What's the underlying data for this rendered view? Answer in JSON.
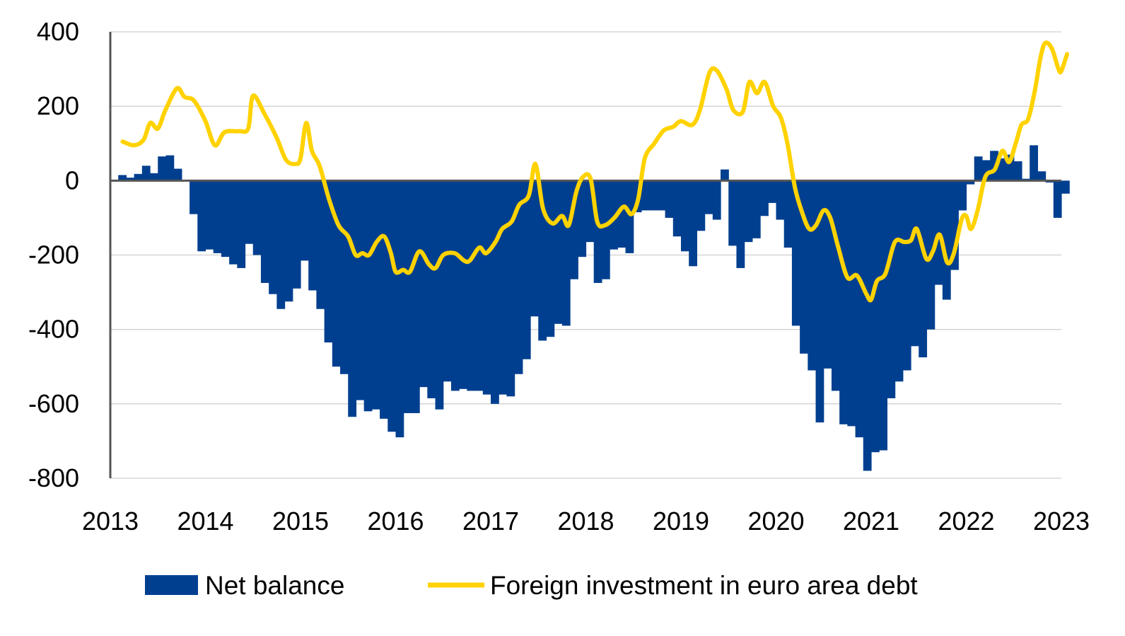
{
  "chart_data": {
    "type": "bar+line",
    "title": "",
    "xlabel": "",
    "ylabel": "",
    "ylim": [
      -800,
      400
    ],
    "yticks": [
      "400",
      "200",
      "0",
      "-200",
      "-400",
      "-600",
      "-800"
    ],
    "xlim": [
      2013,
      2023
    ],
    "xticks": [
      "2013",
      "2014",
      "2015",
      "2016",
      "2017",
      "2018",
      "2019",
      "2020",
      "2021",
      "2022",
      "2023"
    ],
    "grid": true,
    "legend_position": "bottom",
    "series": [
      {
        "name": "Net balance",
        "kind": "bar",
        "color": "#003f8f",
        "start": 2013.0,
        "step_months": 1,
        "values": [
          15,
          8,
          18,
          40,
          20,
          65,
          68,
          32,
          0,
          -90,
          -190,
          -185,
          -195,
          -205,
          -225,
          -235,
          -170,
          -200,
          -275,
          -305,
          -345,
          -325,
          -290,
          -215,
          -295,
          -345,
          -435,
          -500,
          -520,
          -635,
          -590,
          -620,
          -615,
          -640,
          -675,
          -690,
          -625,
          -625,
          -555,
          -585,
          -615,
          -540,
          -565,
          -560,
          -565,
          -565,
          -575,
          -600,
          -575,
          -580,
          -520,
          -480,
          -365,
          -430,
          -420,
          -385,
          -390,
          -265,
          -205,
          -165,
          -275,
          -265,
          -185,
          -180,
          -195,
          -85,
          -80,
          -80,
          -80,
          -100,
          -150,
          -190,
          -230,
          -135,
          -90,
          -105,
          30,
          -175,
          -235,
          -165,
          -155,
          -95,
          -60,
          -105,
          -180,
          -390,
          -465,
          -510,
          -650,
          -505,
          -565,
          -655,
          -660,
          -690,
          -780,
          -730,
          -725,
          -585,
          -540,
          -510,
          -445,
          -475,
          -400,
          -280,
          -320,
          -240,
          -80,
          -10,
          65,
          55,
          80,
          60,
          70,
          52,
          5,
          95,
          25,
          -5,
          -100,
          -35
        ]
      },
      {
        "name": "Foreign investment in euro area debt",
        "kind": "line",
        "color": "#ffd200",
        "points": [
          [
            2013.13,
            105
          ],
          [
            2013.25,
            95
          ],
          [
            2013.35,
            110
          ],
          [
            2013.42,
            155
          ],
          [
            2013.5,
            140
          ],
          [
            2013.58,
            190
          ],
          [
            2013.7,
            248
          ],
          [
            2013.78,
            225
          ],
          [
            2013.88,
            215
          ],
          [
            2014.0,
            160
          ],
          [
            2014.1,
            95
          ],
          [
            2014.2,
            130
          ],
          [
            2014.35,
            133
          ],
          [
            2014.45,
            140
          ],
          [
            2014.5,
            228
          ],
          [
            2014.62,
            180
          ],
          [
            2014.75,
            115
          ],
          [
            2014.85,
            55
          ],
          [
            2014.95,
            45
          ],
          [
            2015.0,
            60
          ],
          [
            2015.06,
            155
          ],
          [
            2015.12,
            80
          ],
          [
            2015.2,
            40
          ],
          [
            2015.3,
            -50
          ],
          [
            2015.4,
            -120
          ],
          [
            2015.5,
            -150
          ],
          [
            2015.58,
            -200
          ],
          [
            2015.65,
            -195
          ],
          [
            2015.72,
            -200
          ],
          [
            2015.8,
            -165
          ],
          [
            2015.88,
            -150
          ],
          [
            2015.95,
            -195
          ],
          [
            2016.0,
            -245
          ],
          [
            2016.08,
            -240
          ],
          [
            2016.15,
            -245
          ],
          [
            2016.25,
            -190
          ],
          [
            2016.35,
            -225
          ],
          [
            2016.42,
            -235
          ],
          [
            2016.5,
            -200
          ],
          [
            2016.62,
            -195
          ],
          [
            2016.72,
            -215
          ],
          [
            2016.78,
            -215
          ],
          [
            2016.88,
            -180
          ],
          [
            2016.95,
            -195
          ],
          [
            2017.05,
            -165
          ],
          [
            2017.12,
            -130
          ],
          [
            2017.22,
            -110
          ],
          [
            2017.3,
            -65
          ],
          [
            2017.4,
            -40
          ],
          [
            2017.47,
            45
          ],
          [
            2017.55,
            -75
          ],
          [
            2017.65,
            -115
          ],
          [
            2017.75,
            -95
          ],
          [
            2017.82,
            -120
          ],
          [
            2017.9,
            -30
          ],
          [
            2017.97,
            10
          ],
          [
            2018.05,
            5
          ],
          [
            2018.12,
            -110
          ],
          [
            2018.2,
            -120
          ],
          [
            2018.3,
            -100
          ],
          [
            2018.4,
            -70
          ],
          [
            2018.48,
            -90
          ],
          [
            2018.55,
            -50
          ],
          [
            2018.62,
            60
          ],
          [
            2018.72,
            100
          ],
          [
            2018.82,
            135
          ],
          [
            2018.92,
            145
          ],
          [
            2019.0,
            160
          ],
          [
            2019.12,
            150
          ],
          [
            2019.2,
            190
          ],
          [
            2019.3,
            290
          ],
          [
            2019.38,
            295
          ],
          [
            2019.48,
            245
          ],
          [
            2019.55,
            190
          ],
          [
            2019.65,
            185
          ],
          [
            2019.72,
            265
          ],
          [
            2019.8,
            235
          ],
          [
            2019.88,
            265
          ],
          [
            2019.97,
            200
          ],
          [
            2020.05,
            170
          ],
          [
            2020.12,
            100
          ],
          [
            2020.2,
            -20
          ],
          [
            2020.28,
            -90
          ],
          [
            2020.35,
            -130
          ],
          [
            2020.42,
            -120
          ],
          [
            2020.5,
            -80
          ],
          [
            2020.57,
            -100
          ],
          [
            2020.65,
            -175
          ],
          [
            2020.75,
            -260
          ],
          [
            2020.85,
            -255
          ],
          [
            2020.95,
            -305
          ],
          [
            2021.0,
            -320
          ],
          [
            2021.06,
            -270
          ],
          [
            2021.15,
            -250
          ],
          [
            2021.25,
            -165
          ],
          [
            2021.35,
            -165
          ],
          [
            2021.42,
            -160
          ],
          [
            2021.48,
            -130
          ],
          [
            2021.58,
            -210
          ],
          [
            2021.65,
            -190
          ],
          [
            2021.72,
            -145
          ],
          [
            2021.8,
            -220
          ],
          [
            2021.87,
            -195
          ],
          [
            2021.95,
            -105
          ],
          [
            2022.0,
            -95
          ],
          [
            2022.05,
            -130
          ],
          [
            2022.12,
            -80
          ],
          [
            2022.2,
            10
          ],
          [
            2022.3,
            30
          ],
          [
            2022.38,
            80
          ],
          [
            2022.45,
            50
          ],
          [
            2022.52,
            100
          ],
          [
            2022.58,
            150
          ],
          [
            2022.65,
            165
          ],
          [
            2022.72,
            240
          ],
          [
            2022.78,
            330
          ],
          [
            2022.83,
            370
          ],
          [
            2022.9,
            355
          ],
          [
            2022.97,
            300
          ],
          [
            2023.0,
            295
          ],
          [
            2023.06,
            340
          ]
        ]
      }
    ]
  }
}
